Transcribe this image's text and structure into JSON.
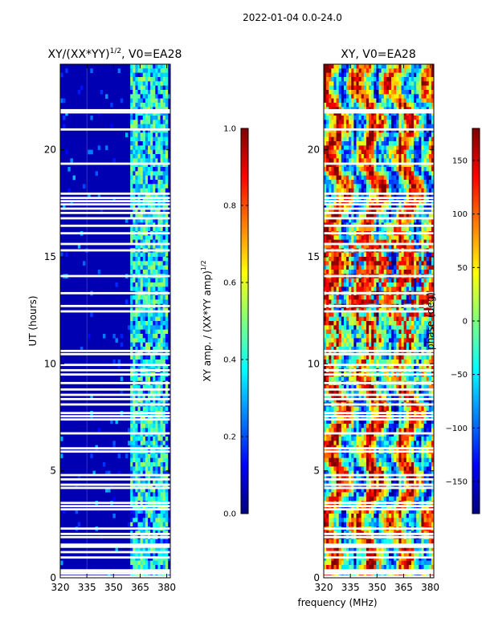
{
  "suptitle": "2022-01-04 0.0-24.0",
  "shared_xlabel": "frequency (MHz)",
  "colors": {
    "jet": [
      "#00007f",
      "#0000ff",
      "#007fff",
      "#00ffff",
      "#7fff7f",
      "#ffff00",
      "#ff7f00",
      "#ff0000",
      "#7f0000"
    ],
    "gap": "#ffffff",
    "axis": "#000000"
  },
  "chart_data": [
    {
      "type": "heatmap",
      "title_main": "XY/(XX*YY)",
      "title_sup": "1/2",
      "title_tail": ", V0=EA28",
      "xlabel": "",
      "ylabel": "UT (hours)",
      "xlim": [
        320,
        382
      ],
      "ylim": [
        0,
        24
      ],
      "xticks": [
        320,
        335,
        350,
        365,
        380
      ],
      "yticks": [
        0,
        5,
        10,
        15,
        20
      ],
      "xtick_labels": [
        "320",
        "335",
        "350",
        "365",
        "380"
      ],
      "ytick_labels": [
        "0",
        "5",
        "10",
        "15",
        "20"
      ],
      "low_band_level": 0.05,
      "high_band_range_mhz": [
        360,
        381
      ],
      "high_band_levels": [
        0.25,
        0.55
      ],
      "colorbar": {
        "label_main": "XY amp. / (XX*YY amp)",
        "label_sup": "1/2",
        "range": [
          0.0,
          1.0
        ],
        "ticks": [
          0.0,
          0.2,
          0.4,
          0.6,
          0.8,
          1.0
        ],
        "tick_labels": [
          "0.0",
          "0.2",
          "0.4",
          "0.6",
          "0.8",
          "1.0"
        ]
      }
    },
    {
      "type": "heatmap",
      "title": "XY, V0=EA28",
      "xlabel": "",
      "ylabel": "",
      "xlim": [
        320,
        382
      ],
      "ylim": [
        0,
        24
      ],
      "xticks": [
        320,
        335,
        350,
        365,
        380
      ],
      "yticks": [
        0,
        5,
        10,
        15,
        20
      ],
      "xtick_labels": [
        "320",
        "335",
        "350",
        "365",
        "380"
      ],
      "ytick_labels": [
        "0",
        "5",
        "10",
        "15",
        "20"
      ],
      "value_range": [
        -180,
        180
      ],
      "colorbar": {
        "label": "phase (deg)",
        "range": [
          -180,
          180
        ],
        "ticks": [
          -150,
          -100,
          -50,
          0,
          50,
          100,
          150
        ],
        "tick_labels": [
          "−150",
          "−100",
          "−50",
          "0",
          "50",
          "100",
          "150"
        ]
      }
    }
  ],
  "flagged_ut_hours": [
    0.2,
    0.3,
    0.35,
    0.95,
    1.2,
    1.45,
    1.55,
    1.9,
    2.05,
    2.3,
    3.2,
    3.35,
    3.5,
    4.2,
    4.35,
    4.6,
    4.8,
    5.9,
    6.05,
    6.75,
    7.4,
    7.55,
    7.7,
    8.1,
    8.35,
    8.55,
    8.8,
    9.1,
    9.5,
    9.7,
    9.95,
    10.45,
    10.6,
    12.45,
    12.7,
    13.3,
    14.1,
    15.3,
    15.6,
    16.1,
    16.45,
    16.8,
    17.05,
    17.25,
    17.45,
    17.6,
    17.75,
    17.95,
    19.35,
    20.95,
    21.75,
    21.85
  ]
}
